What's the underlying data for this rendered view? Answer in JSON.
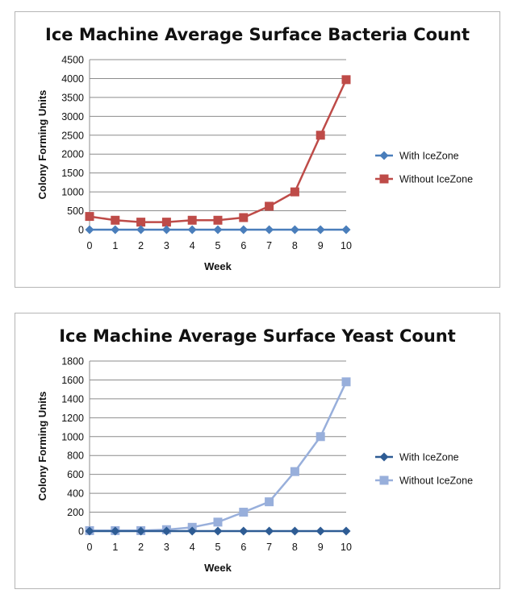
{
  "chart_data": [
    {
      "type": "line",
      "title": "Ice Machine Average Surface Bacteria Count",
      "xlabel": "Week",
      "ylabel": "Colony Forming Units",
      "x": [
        0,
        1,
        2,
        3,
        4,
        5,
        6,
        7,
        8,
        9,
        10
      ],
      "ylim": [
        0,
        4500
      ],
      "yticks": [
        0,
        500,
        1000,
        1500,
        2000,
        2500,
        3000,
        3500,
        4000,
        4500
      ],
      "grid": true,
      "legend": "right",
      "series": [
        {
          "name": "With IceZone",
          "color": "#4a7ebb",
          "marker": "diamond",
          "values": [
            0,
            0,
            0,
            0,
            0,
            0,
            0,
            0,
            0,
            0,
            0
          ]
        },
        {
          "name": "Without IceZone",
          "color": "#be4b48",
          "marker": "square",
          "values": [
            350,
            250,
            200,
            200,
            250,
            250,
            320,
            620,
            1000,
            2500,
            3970
          ]
        }
      ]
    },
    {
      "type": "line",
      "title": "Ice Machine Average Surface Yeast Count",
      "xlabel": "Week",
      "ylabel": "Colony Forming Units",
      "x": [
        0,
        1,
        2,
        3,
        4,
        5,
        6,
        7,
        8,
        9,
        10
      ],
      "ylim": [
        0,
        1800
      ],
      "yticks": [
        0,
        200,
        400,
        600,
        800,
        1000,
        1200,
        1400,
        1600,
        1800
      ],
      "grid": true,
      "legend": "right",
      "series": [
        {
          "name": "With IceZone",
          "color": "#2e5c94",
          "marker": "diamond",
          "values": [
            0,
            0,
            0,
            0,
            0,
            0,
            0,
            0,
            0,
            0,
            0
          ]
        },
        {
          "name": "Without IceZone",
          "color": "#98afdb",
          "marker": "square",
          "values": [
            5,
            5,
            5,
            15,
            40,
            95,
            200,
            310,
            630,
            1000,
            1580
          ]
        }
      ]
    }
  ]
}
